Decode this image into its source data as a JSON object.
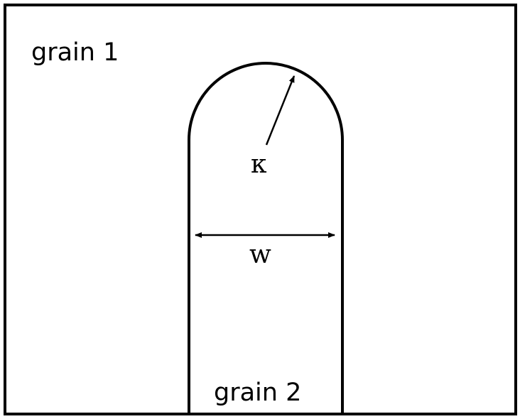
{
  "labels": {
    "grain1": "grain 1",
    "grain2": "grain 2",
    "curvature": "κ",
    "width": "w"
  },
  "colors": {
    "stroke": "#000000",
    "background": "#ffffff"
  }
}
